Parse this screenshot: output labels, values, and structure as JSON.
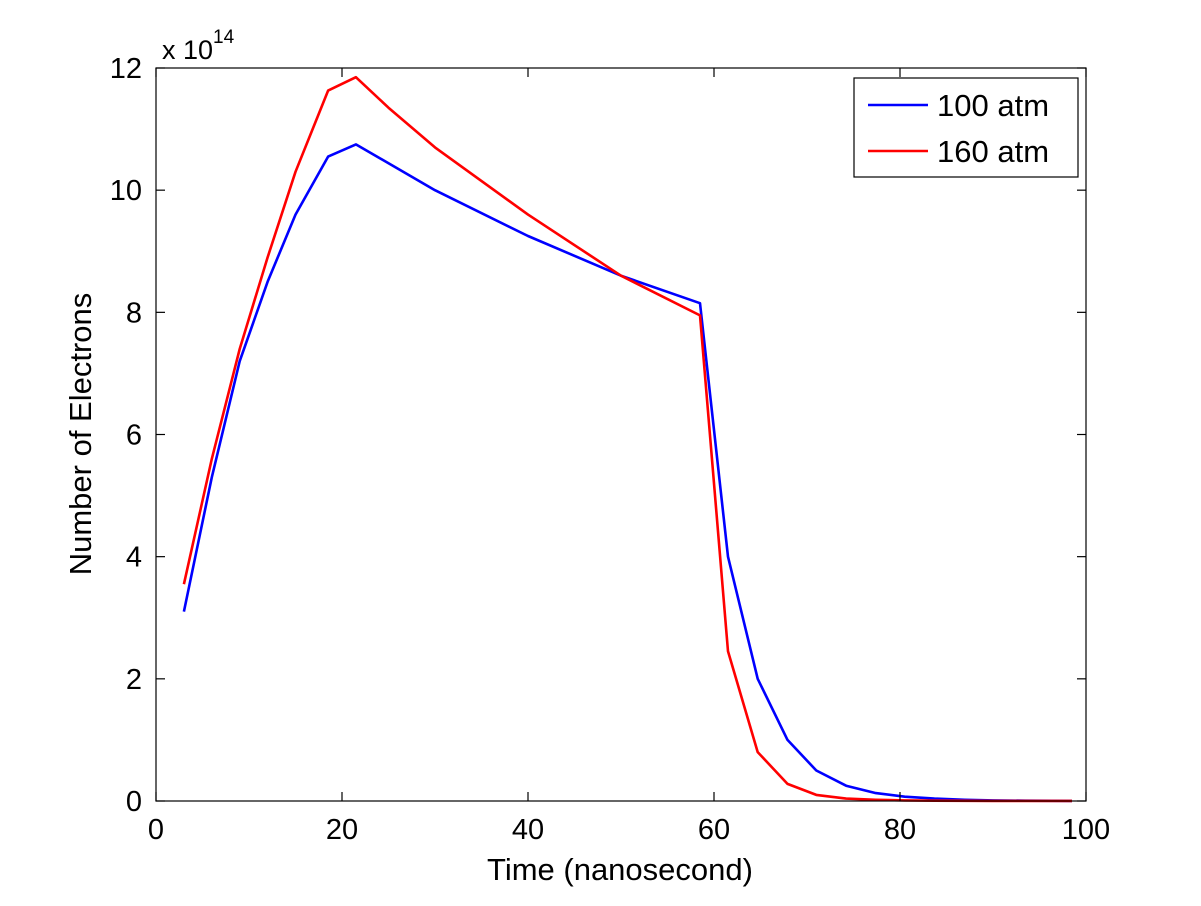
{
  "chart_data": {
    "type": "line",
    "xlabel": "Time (nanosecond)",
    "ylabel": "Number of Electrons",
    "y_multiplier": {
      "base": "x 10",
      "exponent": "14"
    },
    "xlim": [
      0,
      100
    ],
    "ylim": [
      0,
      12
    ],
    "xticks": [
      0,
      20,
      40,
      60,
      80,
      100
    ],
    "yticks": [
      0,
      2,
      4,
      6,
      8,
      10,
      12
    ],
    "xtick_labels": [
      "0",
      "20",
      "40",
      "60",
      "80",
      "100"
    ],
    "ytick_labels": [
      "0",
      "2",
      "4",
      "6",
      "8",
      "10",
      "12"
    ],
    "grid": false,
    "legend_position": "top-right",
    "series": [
      {
        "name": "100 atm",
        "color": "#0000ff",
        "x": [
          3,
          6,
          9,
          12,
          15,
          18.5,
          21.5,
          30,
          40,
          50,
          58.5,
          61.5,
          64.7,
          67.9,
          71,
          74.2,
          77.4,
          80.5,
          83.7,
          87,
          90,
          93.5,
          96.5,
          98.5
        ],
        "y": [
          3.1,
          5.3,
          7.2,
          8.5,
          9.6,
          10.55,
          10.75,
          10.0,
          9.25,
          8.6,
          8.15,
          4.0,
          2.0,
          1.0,
          0.5,
          0.25,
          0.13,
          0.07,
          0.04,
          0.02,
          0.01,
          0.005,
          0.003,
          0.002
        ]
      },
      {
        "name": "160 atm",
        "color": "#ff0000",
        "x": [
          3,
          6,
          9,
          12,
          15,
          18.5,
          21.5,
          25,
          30,
          40,
          50,
          58.5,
          61.5,
          64.7,
          67.9,
          71,
          74.2,
          77.4,
          80.5,
          83.7,
          87,
          90,
          93.5,
          96.5,
          98.5
        ],
        "y": [
          3.55,
          5.6,
          7.4,
          8.9,
          10.3,
          11.63,
          11.85,
          11.35,
          10.7,
          9.6,
          8.6,
          7.95,
          2.45,
          0.8,
          0.28,
          0.1,
          0.04,
          0.02,
          0.01,
          0.005,
          0.003,
          0.002,
          0.001,
          0.001,
          0.001
        ]
      }
    ]
  }
}
